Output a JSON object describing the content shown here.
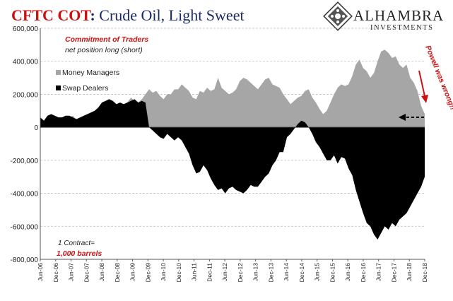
{
  "title": {
    "prefix": "CFTC COT",
    "separator": ":",
    "rest": " Crude Oil, Light Sweet"
  },
  "logo": {
    "name": "ALHAMBRA",
    "tagline": "INVESTMENTS"
  },
  "colors": {
    "title_red": "#cc1111",
    "title_navy": "#1a2a66",
    "money_managers": "#a6a6a6",
    "swap_dealers": "#000000",
    "annotation_red": "#cc1111",
    "grid": "#bdbdbd"
  },
  "chart_data": {
    "type": "area",
    "title": "CFTC COT: Crude Oil, Light Sweet",
    "subtitle": "Commitment of Traders",
    "subtitle2": "net position long (short)",
    "ylim": [
      -800000,
      600000
    ],
    "y_ticks": [
      600000,
      400000,
      200000,
      0,
      -200000,
      -400000,
      -600000,
      -800000
    ],
    "y_tick_labels": [
      "600,000",
      "400,000",
      "200,000",
      "0",
      "-200,000",
      "-400,000",
      "-600,000",
      "-800,000"
    ],
    "x_tick_labels": [
      "Jun-06",
      "Dec-06",
      "Jun-07",
      "Dec-07",
      "Jun-08",
      "Dec-08",
      "Jun-09",
      "Dec-09",
      "Jun-10",
      "Dec-10",
      "Jun-11",
      "Dec-11",
      "Jun-12",
      "Dec-12",
      "Jun-13",
      "Dec-13",
      "Jun-14",
      "Dec-14",
      "Jun-15",
      "Dec-15",
      "Jun-16",
      "Dec-16",
      "Jun-17",
      "Dec-17",
      "Jun-18",
      "Dec-18"
    ],
    "grid": true,
    "legend_position": "top-left",
    "series": [
      {
        "name": "Money Managers",
        "color": "#a6a6a6",
        "values": [
          40000,
          30000,
          60000,
          80000,
          70000,
          60000,
          50000,
          70000,
          60000,
          70000,
          40000,
          60000,
          70000,
          60000,
          90000,
          100000,
          110000,
          150000,
          140000,
          170000,
          120000,
          100000,
          130000,
          140000,
          150000,
          180000,
          160000,
          150000,
          170000,
          200000,
          230000,
          210000,
          220000,
          190000,
          170000,
          200000,
          200000,
          230000,
          230000,
          260000,
          240000,
          220000,
          180000,
          170000,
          220000,
          210000,
          240000,
          220000,
          230000,
          300000,
          240000,
          220000,
          200000,
          210000,
          230000,
          280000,
          300000,
          290000,
          270000,
          250000,
          230000,
          260000,
          290000,
          300000,
          260000,
          250000,
          240000,
          200000,
          170000,
          140000,
          160000,
          180000,
          190000,
          220000,
          230000,
          180000,
          150000,
          110000,
          80000,
          100000,
          150000,
          200000,
          240000,
          260000,
          250000,
          260000,
          310000,
          380000,
          410000,
          360000,
          340000,
          300000,
          330000,
          400000,
          460000,
          470000,
          450000,
          420000,
          430000,
          380000,
          360000,
          380000,
          300000,
          270000,
          220000,
          130000,
          80000
        ]
      },
      {
        "name": "Swap Dealers",
        "color": "#000000",
        "values": [
          60000,
          40000,
          70000,
          80000,
          70000,
          60000,
          60000,
          70000,
          70000,
          60000,
          50000,
          60000,
          70000,
          80000,
          90000,
          100000,
          120000,
          150000,
          160000,
          170000,
          160000,
          140000,
          150000,
          140000,
          150000,
          160000,
          170000,
          150000,
          160000,
          150000,
          0,
          -20000,
          -40000,
          -60000,
          -70000,
          -40000,
          -60000,
          -80000,
          -60000,
          -80000,
          -120000,
          -160000,
          -230000,
          -280000,
          -270000,
          -230000,
          -260000,
          -310000,
          -350000,
          -380000,
          -370000,
          -400000,
          -370000,
          -360000,
          -380000,
          -390000,
          -400000,
          -380000,
          -350000,
          -360000,
          -360000,
          -330000,
          -300000,
          -280000,
          -230000,
          -200000,
          -150000,
          -150000,
          -60000,
          -40000,
          -10000,
          20000,
          40000,
          30000,
          0,
          -40000,
          -90000,
          -120000,
          -160000,
          -200000,
          -200000,
          -170000,
          -220000,
          -180000,
          -190000,
          -250000,
          -290000,
          -380000,
          -450000,
          -520000,
          -580000,
          -600000,
          -650000,
          -680000,
          -640000,
          -600000,
          -620000,
          -580000,
          -600000,
          -560000,
          -540000,
          -520000,
          -480000,
          -440000,
          -400000,
          -360000,
          -300000
        ]
      }
    ],
    "annotations": {
      "powell": "Powell was wrong!!",
      "contract_line1": "1 Contract=",
      "contract_line2": "1,000 barrels",
      "arrow": "dashed-left-arrow-at-latest-level"
    }
  }
}
